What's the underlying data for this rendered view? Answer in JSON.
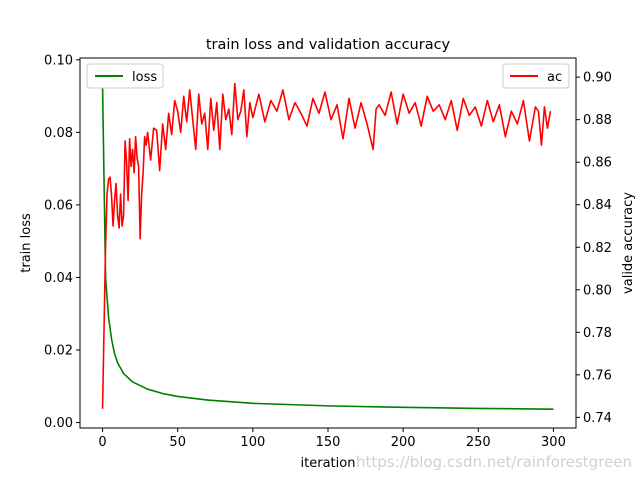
{
  "chart_data": {
    "type": "line",
    "title": "train loss and validation accuracy",
    "xlabel": "iteration",
    "ylabel_left": "train loss",
    "ylabel_right": "valide accuracy",
    "xlim": [
      -15,
      315
    ],
    "ylim_left": [
      -0.0015,
      0.1005
    ],
    "ylim_right": [
      0.735,
      0.909
    ],
    "x_ticks": [
      0,
      50,
      100,
      150,
      200,
      250,
      300
    ],
    "y_ticks_left": [
      0.0,
      0.02,
      0.04,
      0.06,
      0.08,
      0.1
    ],
    "y_ticks_right": [
      0.74,
      0.76,
      0.78,
      0.8,
      0.82,
      0.84,
      0.86,
      0.88,
      0.9
    ],
    "y_tick_labels_left": [
      "0.00",
      "0.02",
      "0.04",
      "0.06",
      "0.08",
      "0.10"
    ],
    "y_tick_labels_right": [
      "0.74",
      "0.76",
      "0.78",
      "0.80",
      "0.82",
      "0.84",
      "0.86",
      "0.88",
      "0.90"
    ],
    "grid": false,
    "series": [
      {
        "name": "loss",
        "axis": "left",
        "color": "#008000",
        "legend_position": "upper-left",
        "x": [
          0,
          2,
          4,
          6,
          8,
          10,
          14,
          20,
          30,
          40,
          50,
          70,
          100,
          150,
          200,
          250,
          300
        ],
        "y": [
          0.093,
          0.04,
          0.029,
          0.023,
          0.019,
          0.0165,
          0.0135,
          0.0112,
          0.0092,
          0.008,
          0.0072,
          0.0062,
          0.0053,
          0.0046,
          0.0042,
          0.0039,
          0.0037
        ]
      },
      {
        "name": "ac",
        "axis": "right",
        "color": "#ff0000",
        "legend_position": "upper-right",
        "x": [
          0,
          2,
          3,
          4,
          5,
          6,
          7,
          8,
          9,
          10,
          11,
          12,
          13,
          14,
          15,
          16,
          17,
          18,
          19,
          20,
          21,
          22,
          23,
          24,
          25,
          26,
          27,
          28,
          29,
          30,
          32,
          34,
          36,
          38,
          40,
          42,
          44,
          46,
          48,
          50,
          52,
          54,
          56,
          58,
          60,
          62,
          64,
          66,
          68,
          70,
          72,
          74,
          76,
          78,
          80,
          82,
          84,
          86,
          88,
          90,
          92,
          94,
          96,
          98,
          100,
          104,
          108,
          112,
          116,
          120,
          124,
          128,
          132,
          136,
          140,
          144,
          148,
          152,
          156,
          160,
          164,
          168,
          172,
          176,
          180,
          182,
          184,
          188,
          192,
          196,
          200,
          204,
          208,
          212,
          216,
          220,
          224,
          228,
          232,
          236,
          240,
          244,
          248,
          252,
          256,
          260,
          264,
          268,
          272,
          276,
          280,
          284,
          288,
          290,
          292,
          294,
          296,
          298
        ],
        "y": [
          0.744,
          0.82,
          0.845,
          0.852,
          0.853,
          0.844,
          0.83,
          0.842,
          0.85,
          0.835,
          0.829,
          0.845,
          0.83,
          0.835,
          0.87,
          0.86,
          0.842,
          0.871,
          0.858,
          0.866,
          0.855,
          0.872,
          0.862,
          0.858,
          0.824,
          0.845,
          0.855,
          0.872,
          0.868,
          0.874,
          0.861,
          0.876,
          0.875,
          0.856,
          0.878,
          0.866,
          0.883,
          0.873,
          0.889,
          0.884,
          0.874,
          0.891,
          0.879,
          0.894,
          0.88,
          0.866,
          0.892,
          0.878,
          0.883,
          0.866,
          0.89,
          0.875,
          0.888,
          0.866,
          0.892,
          0.88,
          0.885,
          0.873,
          0.897,
          0.88,
          0.884,
          0.894,
          0.872,
          0.888,
          0.881,
          0.892,
          0.879,
          0.889,
          0.884,
          0.894,
          0.88,
          0.888,
          0.883,
          0.877,
          0.89,
          0.883,
          0.893,
          0.88,
          0.887,
          0.871,
          0.89,
          0.876,
          0.888,
          0.878,
          0.866,
          0.885,
          0.887,
          0.882,
          0.893,
          0.878,
          0.892,
          0.883,
          0.888,
          0.877,
          0.891,
          0.884,
          0.887,
          0.88,
          0.889,
          0.875,
          0.89,
          0.882,
          0.886,
          0.877,
          0.889,
          0.879,
          0.887,
          0.872,
          0.884,
          0.878,
          0.889,
          0.87,
          0.886,
          0.884,
          0.868,
          0.886,
          0.876,
          0.884
        ]
      }
    ]
  },
  "watermark": "https://blog.csdn.net/rainforestgreen"
}
